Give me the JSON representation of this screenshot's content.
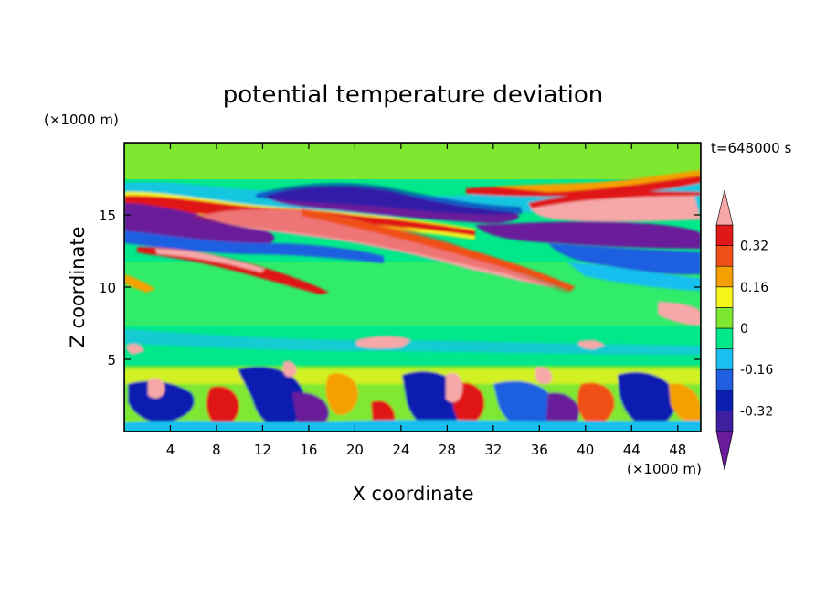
{
  "chart_data": {
    "type": "heatmap",
    "title": "potential temperature deviation",
    "xlabel": "X coordinate",
    "ylabel": "Z coordinate",
    "x_unit": "(×1000 m)",
    "y_unit": "(×1000 m)",
    "time_label": "t=648000 s",
    "xlim": [
      0,
      50
    ],
    "ylim": [
      0,
      20
    ],
    "x_ticks": [
      4,
      8,
      12,
      16,
      20,
      24,
      28,
      32,
      36,
      40,
      44,
      48
    ],
    "y_ticks": [
      5,
      10,
      15
    ],
    "colorbar": {
      "labels": [
        "0.32",
        "0.16",
        "0",
        "-0.16",
        "-0.32"
      ],
      "levels": [
        -0.4,
        -0.32,
        -0.24,
        -0.16,
        -0.08,
        0,
        0.08,
        0.16,
        0.24,
        0.32,
        0.4
      ],
      "colors": [
        "#6a1b9a",
        "#3f1f9f",
        "#0a1fb0",
        "#1f5fe0",
        "#19bff0",
        "#00e88a",
        "#7ee830",
        "#f5f51a",
        "#f5a000",
        "#f05018",
        "#e01818",
        "#f6a8a8"
      ],
      "extend": "both"
    },
    "features": [
      {
        "type": "positive_band",
        "description_x": [
          8,
          40
        ],
        "description_z": [
          9.5,
          15.5
        ],
        "value": 0.4
      },
      {
        "type": "negative_band",
        "description_x": [
          0,
          14
        ],
        "description_z": [
          13,
          16
        ],
        "value": -0.4
      },
      {
        "type": "negative_band",
        "description_x": [
          12,
          28
        ],
        "description_z": [
          15.5,
          17
        ],
        "value": -0.4
      },
      {
        "type": "positive_band",
        "description_x": [
          36,
          50
        ],
        "description_z": [
          14,
          16.5
        ],
        "value": 0.4
      }
    ]
  }
}
